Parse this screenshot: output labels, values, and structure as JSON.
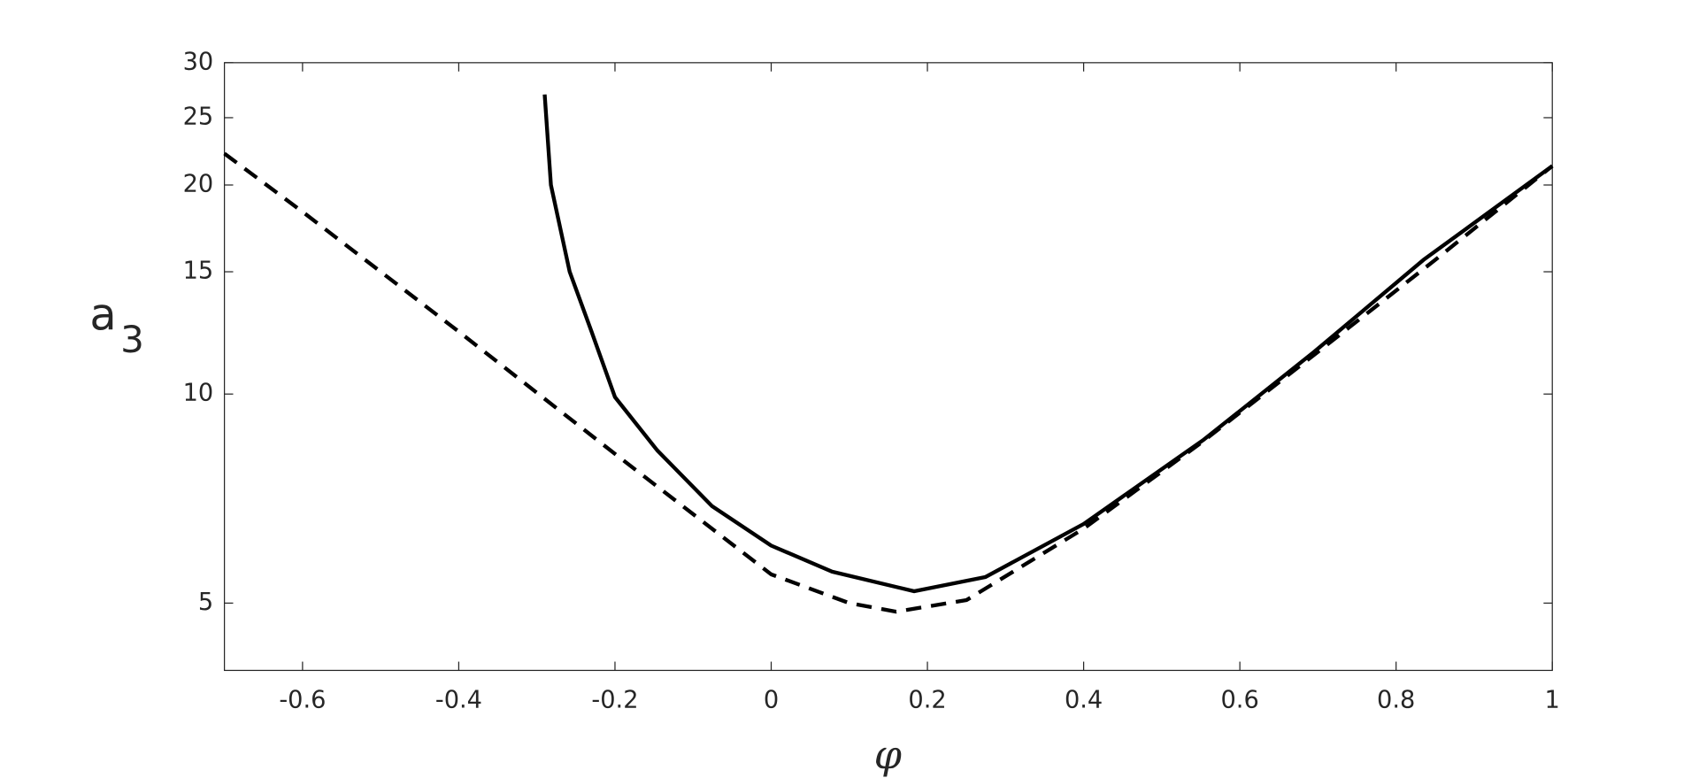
{
  "chart_data": {
    "type": "line",
    "xlabel": "φ",
    "ylabel": "a",
    "ylabel_sub": "3",
    "xlim": [
      -0.7,
      1
    ],
    "xticks": [
      -0.6,
      -0.4,
      -0.2,
      0,
      0.2,
      0.4,
      0.6,
      0.8,
      1
    ],
    "ylim": [
      4,
      30
    ],
    "yticks": [
      5,
      10,
      15,
      20,
      25,
      30
    ],
    "yscale": "log",
    "series": [
      {
        "color": "#000000",
        "dash": false,
        "x": [
          -0.29,
          -0.282,
          -0.258,
          -0.23,
          -0.2,
          -0.146,
          -0.076,
          0,
          0.078,
          0.183,
          0.274,
          0.4,
          0.554,
          0.695,
          0.835,
          1.0
        ],
        "values": [
          27,
          20,
          15,
          12.3,
          9.9,
          8.3,
          6.9,
          6.05,
          5.55,
          5.2,
          5.45,
          6.5,
          8.6,
          11.5,
          15.6,
          21.3
        ]
      },
      {
        "color": "#000000",
        "dash": true,
        "x": [
          -0.7,
          -0.6,
          -0.4,
          -0.2,
          0,
          0.1,
          0.16,
          0.25,
          0.4,
          0.55,
          0.7,
          0.85,
          1.0
        ],
        "values": [
          22.2,
          18.3,
          12.3,
          8.2,
          5.5,
          5.0,
          4.86,
          5.05,
          6.4,
          8.5,
          11.5,
          15.6,
          21.3
        ]
      }
    ]
  }
}
